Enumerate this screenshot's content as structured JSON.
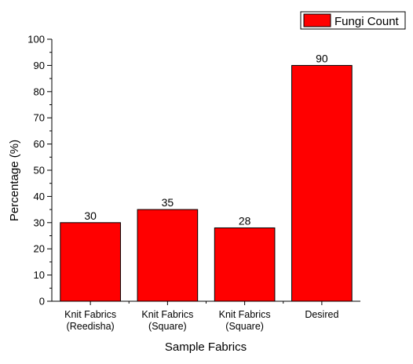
{
  "chart_data": {
    "type": "bar",
    "categories": [
      [
        "Knit Fabrics",
        "(Reedisha)"
      ],
      [
        "Knit Fabrics",
        "(Square)"
      ],
      [
        "Knit Fabrics",
        "(Square)"
      ],
      [
        "Desired"
      ]
    ],
    "series": [
      {
        "name": "Fungi Count",
        "values": [
          30,
          35,
          28,
          90
        ],
        "color": "#ff0000"
      }
    ],
    "xlabel": "Sample Fabrics",
    "ylabel": "Percentage (%)",
    "ylim": [
      0,
      100
    ],
    "yticks": [
      0,
      10,
      20,
      30,
      40,
      50,
      60,
      70,
      80,
      90,
      100
    ],
    "grid": false,
    "legend_position": "top-right"
  }
}
